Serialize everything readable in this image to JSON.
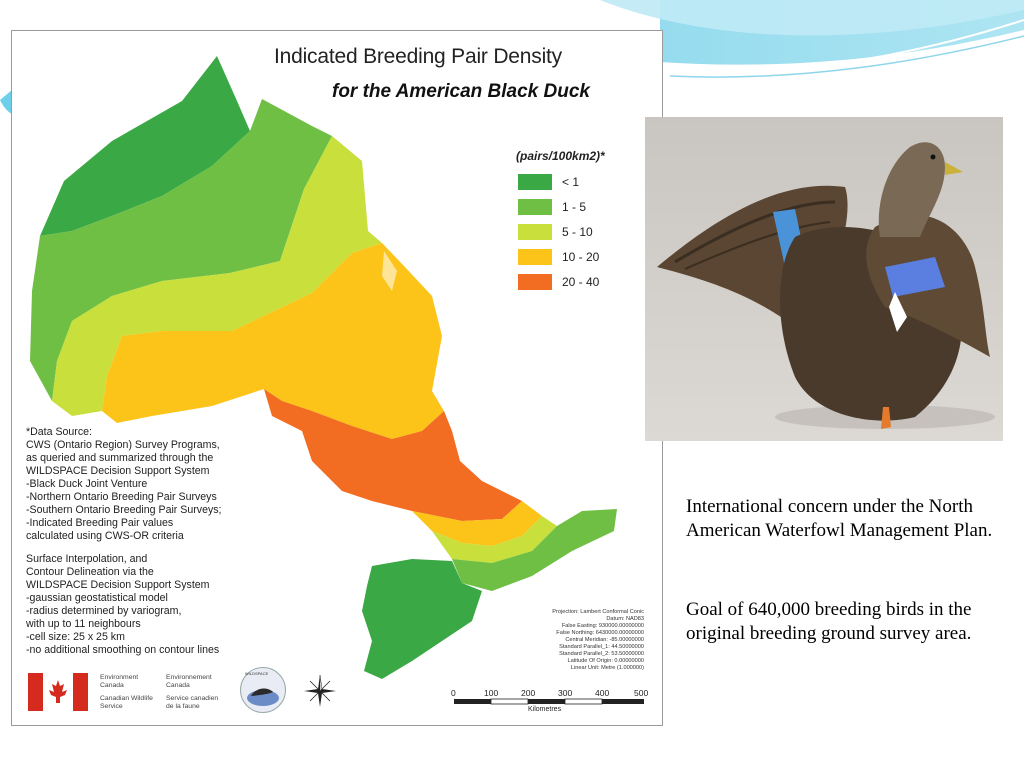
{
  "slide": {
    "paragraph_1": "International concern under the North American Waterfowl Management Plan.",
    "paragraph_2": "Goal of 640,000 breeding birds in the original breeding ground survey area."
  },
  "map": {
    "title_line1": "Indicated Breeding Pair Density",
    "title_line2": "for the American Black Duck",
    "legend": {
      "title": "(pairs/100km2)*",
      "items": [
        {
          "label": "< 1",
          "color": "#3aa845"
        },
        {
          "label": "1 - 5",
          "color": "#6fbf44"
        },
        {
          "label": "5 - 10",
          "color": "#c8df3c"
        },
        {
          "label": "10 - 20",
          "color": "#fcc419"
        },
        {
          "label": "20 - 40",
          "color": "#f26c22"
        }
      ]
    },
    "data_source": {
      "lines_1": [
        "*Data Source:",
        "CWS (Ontario Region) Survey Programs,",
        "as queried and summarized through the",
        "WILDSPACE Decision Support System",
        "-Black Duck Joint Venture",
        "-Northern Ontario Breeding Pair Surveys",
        "-Southern Ontario Breeding Pair Surveys;",
        "-Indicated Breeding Pair values",
        " calculated using CWS-OR criteria"
      ],
      "lines_2": [
        "Surface Interpolation, and",
        "Contour Delineation via the",
        "WILDSPACE Decision Support System",
        "-gaussian geostatistical model",
        "-radius determined by variogram,",
        " with up to 11 neighbours",
        "-cell size: 25 x 25 km",
        "-no additional smoothing on contour lines"
      ]
    },
    "projection_lines": [
      "Projection: Lambert Conformal Conic",
      "Datum: NAD83",
      "False Easting: 930000.00000000",
      "False Northing: 6430000.00000000",
      "Central Meridian: -85.00000000",
      "Standard Parallel_1: 44.50000000",
      "Standard Parallel_2: 53.50000000",
      "Latitude Of Origin: 0.00000000",
      "Linear Unit: Metre (1.000000)"
    ],
    "agency": {
      "en_1": "Environment",
      "en_2": "Canada",
      "fr_1": "Environnement",
      "fr_2": "Canada",
      "en_3": "Canadian Wildlife",
      "en_4": "Service",
      "fr_3": "Service canadien",
      "fr_4": "de la faune"
    },
    "emblem_label": "WILDSPACE",
    "scale": {
      "ticks": [
        "0",
        "100",
        "200",
        "300",
        "400",
        "500"
      ],
      "unit": "Kilometres"
    }
  },
  "colors": {
    "accent_wave": "#5bc8e6",
    "density_lt1": "#3aa845",
    "density_1_5": "#6fbf44",
    "density_5_10": "#c8df3c",
    "density_10_20": "#fcc419",
    "density_20_40": "#f26c22"
  }
}
